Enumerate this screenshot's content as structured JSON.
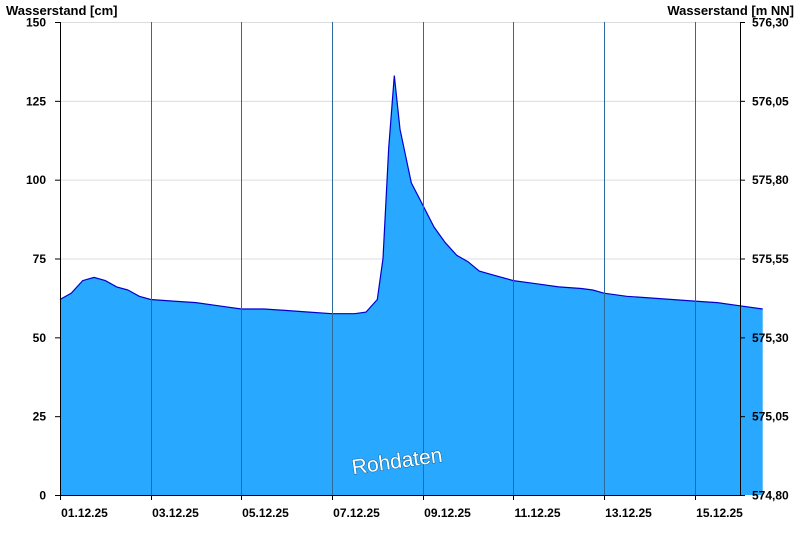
{
  "chart_data": {
    "type": "area",
    "left_axis_title": "Wasserstand [cm]",
    "right_axis_title": "Wasserstand [m NN]",
    "ylim": [
      0,
      150
    ],
    "left_ticks": [
      "0",
      "25",
      "50",
      "75",
      "100",
      "125",
      "150"
    ],
    "left_tick_values": [
      0,
      25,
      50,
      75,
      100,
      125,
      150
    ],
    "right_ticks": [
      "574,80",
      "575,05",
      "575,30",
      "575,55",
      "575,80",
      "576,05",
      "576,30"
    ],
    "x_start": "01.12.25",
    "x_end": "16.12.25",
    "x_tick_labels": [
      "01.12.25",
      "03.12.25",
      "05.12.25",
      "07.12.25",
      "09.12.25",
      "11.12.25",
      "13.12.25",
      "15.12.25"
    ],
    "grid": true,
    "fill_color": "#29a8ff",
    "line_color": "#0000cc",
    "watermark": "Rohdaten",
    "series": [
      {
        "x": [
          "01.12.25 00:00",
          "01.12.25 06:00",
          "01.12.25 12:00",
          "01.12.25 18:00",
          "02.12.25 00:00",
          "02.12.25 06:00",
          "02.12.25 12:00",
          "02.12.25 18:00",
          "03.12.25 00:00",
          "03.12.25 12:00",
          "04.12.25 00:00",
          "04.12.25 12:00",
          "05.12.25 00:00",
          "05.12.25 12:00",
          "06.12.25 00:00",
          "06.12.25 12:00",
          "07.12.25 00:00",
          "07.12.25 06:00",
          "07.12.25 12:00",
          "07.12.25 18:00",
          "08.12.25 00:00",
          "08.12.25 03:00",
          "08.12.25 06:00",
          "08.12.25 09:00",
          "08.12.25 12:00",
          "08.12.25 18:00",
          "09.12.25 00:00",
          "09.12.25 06:00",
          "09.12.25 12:00",
          "09.12.25 18:00",
          "10.12.25 00:00",
          "10.12.25 06:00",
          "10.12.25 12:00",
          "11.12.25 00:00",
          "11.12.25 12:00",
          "12.12.25 00:00",
          "12.12.25 12:00",
          "12.12.25 18:00",
          "13.12.25 00:00",
          "13.12.25 12:00",
          "14.12.25 00:00",
          "14.12.25 12:00",
          "15.12.25 00:00",
          "15.12.25 12:00",
          "16.12.25 00:00",
          "16.12.25 12:00"
        ],
        "values": [
          62,
          64,
          68,
          69,
          68,
          66,
          65,
          63,
          62,
          61.5,
          61,
          60,
          59,
          59,
          58.5,
          58,
          57.5,
          57.5,
          57.5,
          58,
          62,
          75,
          110,
          133,
          116,
          99,
          92,
          85,
          80,
          76,
          74,
          71,
          70,
          68,
          67,
          66,
          65.5,
          65,
          64,
          63,
          62.5,
          62,
          61.5,
          61,
          60,
          59
        ]
      }
    ]
  }
}
